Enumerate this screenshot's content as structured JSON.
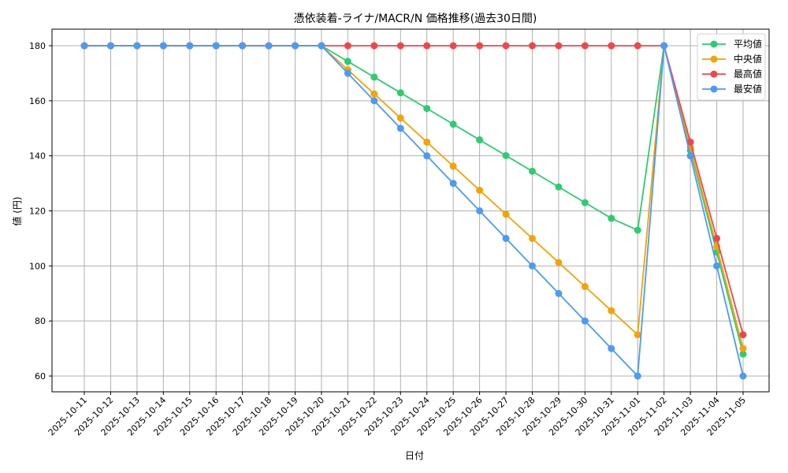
{
  "chart_data": {
    "type": "line",
    "title": "憑依装着-ライナ/MACR/N 価格推移(過去30日間)",
    "xlabel": "日付",
    "ylabel": "値 (円)",
    "ylim": [
      54,
      186
    ],
    "yticks": [
      60,
      80,
      100,
      120,
      140,
      160,
      180
    ],
    "grid": true,
    "legend_position": "upper right",
    "categories": [
      "2025-10-11",
      "2025-10-12",
      "2025-10-13",
      "2025-10-14",
      "2025-10-15",
      "2025-10-16",
      "2025-10-17",
      "2025-10-18",
      "2025-10-19",
      "2025-10-20",
      "2025-10-21",
      "2025-10-22",
      "2025-10-23",
      "2025-10-24",
      "2025-10-25",
      "2025-10-26",
      "2025-10-27",
      "2025-10-28",
      "2025-10-29",
      "2025-10-30",
      "2025-10-31",
      "2025-11-01",
      "2025-11-02",
      "2025-11-03",
      "2025-11-04",
      "2025-11-05"
    ],
    "series": [
      {
        "name": "平均値",
        "color": "#2ecc71",
        "values": [
          180,
          180,
          180,
          180,
          180,
          180,
          180,
          180,
          180,
          180,
          174.3,
          168.6,
          162.9,
          157.2,
          151.5,
          145.8,
          140.1,
          134.4,
          128.7,
          123.0,
          117.3,
          113,
          180,
          142,
          105,
          68
        ]
      },
      {
        "name": "中央値",
        "color": "#f5a300",
        "values": [
          180,
          180,
          180,
          180,
          180,
          180,
          180,
          180,
          180,
          180,
          171.25,
          162.5,
          153.75,
          145,
          136.25,
          127.5,
          118.75,
          110,
          101.25,
          92.5,
          83.75,
          75,
          180,
          143,
          107,
          70
        ]
      },
      {
        "name": "最高値",
        "color": "#f0464b",
        "values": [
          180,
          180,
          180,
          180,
          180,
          180,
          180,
          180,
          180,
          180,
          180,
          180,
          180,
          180,
          180,
          180,
          180,
          180,
          180,
          180,
          180,
          180,
          180,
          145,
          110,
          75
        ]
      },
      {
        "name": "最安値",
        "color": "#4b9bf5",
        "values": [
          180,
          180,
          180,
          180,
          180,
          180,
          180,
          180,
          180,
          180,
          170,
          160,
          150,
          140,
          130,
          120,
          110,
          100,
          90,
          80,
          70,
          60,
          180,
          140,
          100,
          60
        ]
      }
    ]
  }
}
